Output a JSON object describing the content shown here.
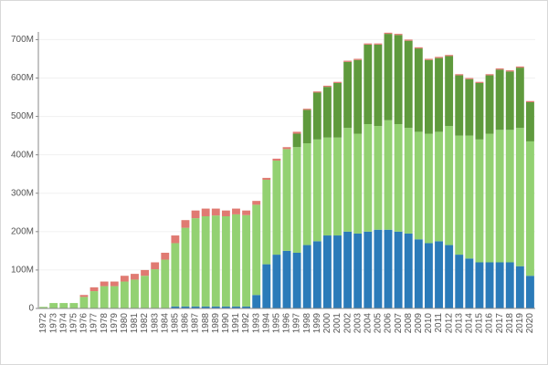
{
  "chart_data": {
    "type": "bar",
    "stacked": true,
    "categories": [
      "1972",
      "1973",
      "1974",
      "1975",
      "1976",
      "1977",
      "1978",
      "1979",
      "1980",
      "1981",
      "1982",
      "1983",
      "1984",
      "1985",
      "1986",
      "1987",
      "1988",
      "1989",
      "1990",
      "1991",
      "1992",
      "1993",
      "1994",
      "1995",
      "1996",
      "1997",
      "1998",
      "1999",
      "2000",
      "2001",
      "2002",
      "2003",
      "2004",
      "2005",
      "2006",
      "2007",
      "2008",
      "2009",
      "2010",
      "2011",
      "2012",
      "2013",
      "2014",
      "2015",
      "2016",
      "2017",
      "2018",
      "2019",
      "2020"
    ],
    "series": [
      {
        "color": "#2b7bb9",
        "values": [
          0,
          0,
          0,
          0,
          0,
          0,
          0,
          0,
          0,
          0,
          0,
          0,
          0,
          5,
          5,
          5,
          5,
          5,
          5,
          5,
          5,
          35,
          115,
          140,
          150,
          145,
          165,
          175,
          190,
          190,
          200,
          195,
          200,
          205,
          205,
          200,
          195,
          180,
          170,
          175,
          165,
          140,
          130,
          120,
          120,
          120,
          120,
          110,
          85
        ]
      },
      {
        "color": "#93d172",
        "values": [
          4,
          14,
          14,
          14,
          30,
          45,
          58,
          58,
          70,
          75,
          85,
          102,
          127,
          165,
          205,
          230,
          235,
          237,
          235,
          240,
          238,
          235,
          220,
          245,
          265,
          275,
          265,
          265,
          255,
          255,
          270,
          260,
          280,
          270,
          285,
          280,
          275,
          280,
          285,
          285,
          310,
          310,
          320,
          320,
          335,
          345,
          345,
          360,
          350
        ]
      },
      {
        "color": "#5f9a3d",
        "values": [
          0,
          0,
          0,
          0,
          0,
          0,
          0,
          0,
          0,
          0,
          0,
          0,
          0,
          0,
          0,
          0,
          0,
          0,
          0,
          0,
          0,
          0,
          0,
          0,
          0,
          35,
          87,
          122,
          132,
          142,
          172,
          192,
          207,
          212,
          225,
          232,
          227,
          217,
          192,
          192,
          182,
          157,
          147,
          147,
          152,
          157,
          152,
          157,
          102
        ]
      },
      {
        "color": "#e07a72",
        "values": [
          0,
          0,
          0,
          0,
          5,
          10,
          12,
          12,
          15,
          15,
          15,
          18,
          18,
          20,
          20,
          20,
          20,
          18,
          15,
          15,
          12,
          10,
          5,
          5,
          5,
          5,
          3,
          3,
          3,
          3,
          3,
          3,
          3,
          3,
          3,
          3,
          3,
          3,
          3,
          3,
          3,
          3,
          3,
          3,
          3,
          3,
          3,
          3,
          3
        ]
      }
    ],
    "ylim": [
      0,
      720
    ],
    "yticks": [
      0,
      {
        "value": 100,
        "label": "100M"
      },
      {
        "value": 200,
        "label": "200M"
      },
      {
        "value": 300,
        "label": "300M"
      },
      {
        "value": 400,
        "label": "400M"
      },
      {
        "value": 500,
        "label": "500M"
      },
      {
        "value": 600,
        "label": "600M"
      },
      {
        "value": 700,
        "label": "700M"
      }
    ],
    "grid": true
  }
}
